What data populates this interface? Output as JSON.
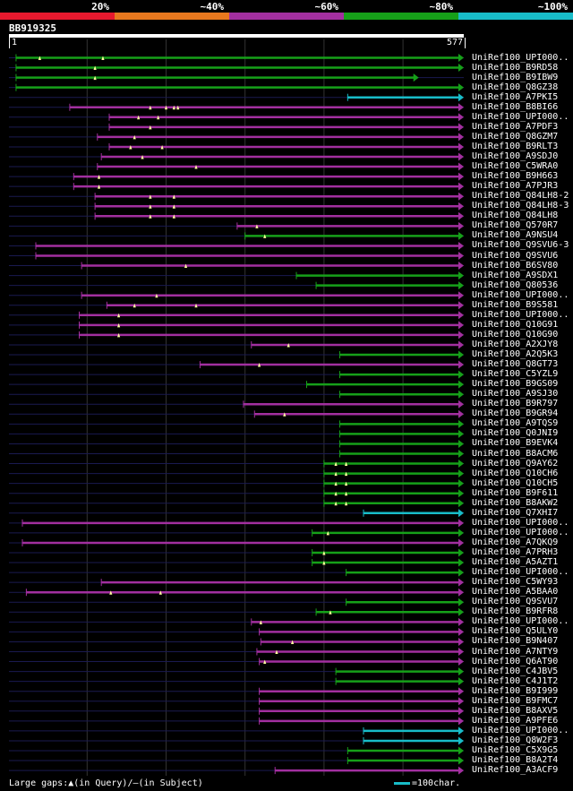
{
  "legend": {
    "labels": [
      "20%",
      "~40%",
      "~60%",
      "~80%",
      "~100%"
    ],
    "colors": [
      "#e8192e",
      "#e8781e",
      "#a22f9f",
      "#16a019",
      "#18bcc8"
    ]
  },
  "query": {
    "name": "BB919325",
    "start": "1",
    "end": "577",
    "length": 577
  },
  "colors": {
    "green": "#16a019",
    "purple": "#a22f9f",
    "cyan": "#18bcc8",
    "dark_line": "#1a1a50",
    "gap_marker": "#ffff9e",
    "grid": "#333333"
  },
  "hits": [
    {
      "label": "UniRef100_UPI000..",
      "color": "green",
      "start": 10,
      "end": 577,
      "gaps": [
        40,
        120
      ]
    },
    {
      "label": "UniRef100_B9RD58",
      "color": "green",
      "start": 10,
      "end": 577,
      "gaps": [
        110
      ]
    },
    {
      "label": "UniRef100_B9IBW9",
      "color": "green",
      "start": 10,
      "end": 520,
      "gaps": [
        110
      ]
    },
    {
      "label": "UniRef100_Q8GZ38",
      "color": "green",
      "start": 10,
      "end": 577,
      "gaps": []
    },
    {
      "label": "UniRef100_A7PKI5",
      "color": "cyan",
      "start": 430,
      "end": 577,
      "gaps": []
    },
    {
      "label": "UniRef100_B8BI66",
      "color": "purple",
      "start": 78,
      "end": 577,
      "gaps": [
        180,
        200,
        210,
        215
      ]
    },
    {
      "label": "UniRef100_UPI000..",
      "color": "purple",
      "start": 128,
      "end": 577,
      "gaps": [
        165,
        190
      ]
    },
    {
      "label": "UniRef100_A7PDF3",
      "color": "purple",
      "start": 128,
      "end": 577,
      "gaps": [
        180
      ]
    },
    {
      "label": "UniRef100_Q8GZM7",
      "color": "purple",
      "start": 113,
      "end": 577,
      "gaps": [
        160
      ]
    },
    {
      "label": "UniRef100_B9RLT3",
      "color": "purple",
      "start": 128,
      "end": 577,
      "gaps": [
        155,
        195
      ]
    },
    {
      "label": "UniRef100_A9SDJ0",
      "color": "purple",
      "start": 118,
      "end": 577,
      "gaps": [
        170
      ]
    },
    {
      "label": "UniRef100_C5WRA0",
      "color": "purple",
      "start": 113,
      "end": 577,
      "gaps": [
        238
      ]
    },
    {
      "label": "UniRef100_B9H663",
      "color": "purple",
      "start": 83,
      "end": 577,
      "gaps": [
        115
      ]
    },
    {
      "label": "UniRef100_A7PJR3",
      "color": "purple",
      "start": 83,
      "end": 577,
      "gaps": [
        115
      ]
    },
    {
      "label": "UniRef100_Q84LH8-2",
      "color": "purple",
      "start": 110,
      "end": 577,
      "gaps": [
        180,
        210
      ]
    },
    {
      "label": "UniRef100_Q84LH8-3",
      "color": "purple",
      "start": 110,
      "end": 577,
      "gaps": [
        180,
        210
      ]
    },
    {
      "label": "UniRef100_Q84LH8",
      "color": "purple",
      "start": 110,
      "end": 577,
      "gaps": [
        180,
        210
      ]
    },
    {
      "label": "UniRef100_Q570R7",
      "color": "purple",
      "start": 290,
      "end": 577,
      "gaps": [
        315
      ]
    },
    {
      "label": "UniRef100_A9NSU4",
      "color": "green",
      "start": 300,
      "end": 577,
      "gaps": [
        325
      ]
    },
    {
      "label": "UniRef100_Q9SVU6-3",
      "color": "purple",
      "start": 35,
      "end": 577,
      "gaps": []
    },
    {
      "label": "UniRef100_Q9SVU6",
      "color": "purple",
      "start": 35,
      "end": 577,
      "gaps": []
    },
    {
      "label": "UniRef100_B6SV80",
      "color": "purple",
      "start": 93,
      "end": 577,
      "gaps": [
        225
      ]
    },
    {
      "label": "UniRef100_A9SDX1",
      "color": "green",
      "start": 365,
      "end": 577,
      "gaps": []
    },
    {
      "label": "UniRef100_Q80536",
      "color": "green",
      "start": 390,
      "end": 577,
      "gaps": []
    },
    {
      "label": "UniRef100_UPI000..",
      "color": "purple",
      "start": 93,
      "end": 577,
      "gaps": [
        188
      ]
    },
    {
      "label": "UniRef100_B9S581",
      "color": "purple",
      "start": 125,
      "end": 577,
      "gaps": [
        160,
        238
      ]
    },
    {
      "label": "UniRef100_UPI000..",
      "color": "purple",
      "start": 90,
      "end": 577,
      "gaps": [
        140
      ]
    },
    {
      "label": "UniRef100_Q10G91",
      "color": "purple",
      "start": 90,
      "end": 577,
      "gaps": [
        140
      ]
    },
    {
      "label": "UniRef100_Q10G90",
      "color": "purple",
      "start": 90,
      "end": 577,
      "gaps": [
        140
      ]
    },
    {
      "label": "UniRef100_A2XJY8",
      "color": "purple",
      "start": 308,
      "end": 577,
      "gaps": [
        355
      ]
    },
    {
      "label": "UniRef100_A2Q5K3",
      "color": "green",
      "start": 420,
      "end": 577,
      "gaps": []
    },
    {
      "label": "UniRef100_Q8GT73",
      "color": "purple",
      "start": 243,
      "end": 577,
      "gaps": [
        318
      ]
    },
    {
      "label": "UniRef100_C5YZL9",
      "color": "green",
      "start": 420,
      "end": 577,
      "gaps": []
    },
    {
      "label": "UniRef100_B9GS09",
      "color": "green",
      "start": 378,
      "end": 577,
      "gaps": []
    },
    {
      "label": "UniRef100_A9SJ30",
      "color": "green",
      "start": 420,
      "end": 577,
      "gaps": []
    },
    {
      "label": "UniRef100_B9R797",
      "color": "purple",
      "start": 298,
      "end": 577,
      "gaps": []
    },
    {
      "label": "UniRef100_B9GR94",
      "color": "purple",
      "start": 312,
      "end": 577,
      "gaps": [
        350
      ]
    },
    {
      "label": "UniRef100_A9TQS9",
      "color": "green",
      "start": 420,
      "end": 577,
      "gaps": []
    },
    {
      "label": "UniRef100_Q0JNI9",
      "color": "green",
      "start": 420,
      "end": 577,
      "gaps": []
    },
    {
      "label": "UniRef100_B9EVK4",
      "color": "green",
      "start": 420,
      "end": 577,
      "gaps": []
    },
    {
      "label": "UniRef100_B8ACM6",
      "color": "green",
      "start": 420,
      "end": 577,
      "gaps": []
    },
    {
      "label": "UniRef100_Q9AY62",
      "color": "green",
      "start": 400,
      "end": 577,
      "gaps": [
        415,
        428
      ]
    },
    {
      "label": "UniRef100_Q10CH6",
      "color": "green",
      "start": 400,
      "end": 577,
      "gaps": [
        415,
        428
      ]
    },
    {
      "label": "UniRef100_Q10CH5",
      "color": "green",
      "start": 400,
      "end": 577,
      "gaps": [
        415,
        428
      ]
    },
    {
      "label": "UniRef100_B9F611",
      "color": "green",
      "start": 400,
      "end": 577,
      "gaps": [
        415,
        428
      ]
    },
    {
      "label": "UniRef100_B8AKW2",
      "color": "green",
      "start": 400,
      "end": 577,
      "gaps": [
        415,
        428
      ]
    },
    {
      "label": "UniRef100_Q7XHI7",
      "color": "cyan",
      "start": 450,
      "end": 577,
      "gaps": []
    },
    {
      "label": "UniRef100_UPI000..",
      "color": "purple",
      "start": 18,
      "end": 577,
      "gaps": []
    },
    {
      "label": "UniRef100_UPI000..",
      "color": "green",
      "start": 385,
      "end": 577,
      "gaps": [
        405
      ]
    },
    {
      "label": "UniRef100_A7QKQ9",
      "color": "purple",
      "start": 18,
      "end": 577,
      "gaps": []
    },
    {
      "label": "UniRef100_A7PRH3",
      "color": "green",
      "start": 385,
      "end": 577,
      "gaps": [
        400
      ]
    },
    {
      "label": "UniRef100_A5AZT1",
      "color": "green",
      "start": 385,
      "end": 577,
      "gaps": [
        400
      ]
    },
    {
      "label": "UniRef100_UPI000..",
      "color": "green",
      "start": 428,
      "end": 577,
      "gaps": []
    },
    {
      "label": "UniRef100_C5WY93",
      "color": "purple",
      "start": 118,
      "end": 577,
      "gaps": []
    },
    {
      "label": "UniRef100_A5BAA0",
      "color": "purple",
      "start": 23,
      "end": 577,
      "gaps": [
        130,
        193
      ]
    },
    {
      "label": "UniRef100_Q9SVU7",
      "color": "green",
      "start": 428,
      "end": 577,
      "gaps": []
    },
    {
      "label": "UniRef100_B9RFR8",
      "color": "green",
      "start": 390,
      "end": 577,
      "gaps": [
        408
      ]
    },
    {
      "label": "UniRef100_UPI000..",
      "color": "purple",
      "start": 308,
      "end": 577,
      "gaps": [
        320
      ]
    },
    {
      "label": "UniRef100_Q5ULY0",
      "color": "purple",
      "start": 318,
      "end": 577,
      "gaps": []
    },
    {
      "label": "UniRef100_B9N407",
      "color": "purple",
      "start": 320,
      "end": 577,
      "gaps": [
        360
      ]
    },
    {
      "label": "UniRef100_A7NTY9",
      "color": "purple",
      "start": 315,
      "end": 577,
      "gaps": [
        340
      ]
    },
    {
      "label": "UniRef100_Q6AT90",
      "color": "purple",
      "start": 318,
      "end": 577,
      "gaps": [
        325
      ]
    },
    {
      "label": "UniRef100_C4JBV5",
      "color": "green",
      "start": 415,
      "end": 577,
      "gaps": []
    },
    {
      "label": "UniRef100_C4J1T2",
      "color": "green",
      "start": 415,
      "end": 577,
      "gaps": []
    },
    {
      "label": "UniRef100_B9I999",
      "color": "purple",
      "start": 318,
      "end": 577,
      "gaps": []
    },
    {
      "label": "UniRef100_B9FMC7",
      "color": "purple",
      "start": 318,
      "end": 577,
      "gaps": []
    },
    {
      "label": "UniRef100_B8AXV5",
      "color": "purple",
      "start": 318,
      "end": 577,
      "gaps": []
    },
    {
      "label": "UniRef100_A9PFE6",
      "color": "purple",
      "start": 318,
      "end": 577,
      "gaps": []
    },
    {
      "label": "UniRef100_UPI000..",
      "color": "cyan",
      "start": 450,
      "end": 577,
      "gaps": []
    },
    {
      "label": "UniRef100_Q8W2F3",
      "color": "cyan",
      "start": 450,
      "end": 577,
      "gaps": []
    },
    {
      "label": "UniRef100_C5X9G5",
      "color": "green",
      "start": 430,
      "end": 577,
      "gaps": []
    },
    {
      "label": "UniRef100_B8A2T4",
      "color": "green",
      "start": 430,
      "end": 577,
      "gaps": []
    },
    {
      "label": "UniRef100_A3ACF9",
      "color": "purple",
      "start": 338,
      "end": 577,
      "gaps": []
    }
  ],
  "footer": {
    "text": "Large gaps:▲(in Query)/–(in Subject)",
    "scale_label": "=100char."
  }
}
